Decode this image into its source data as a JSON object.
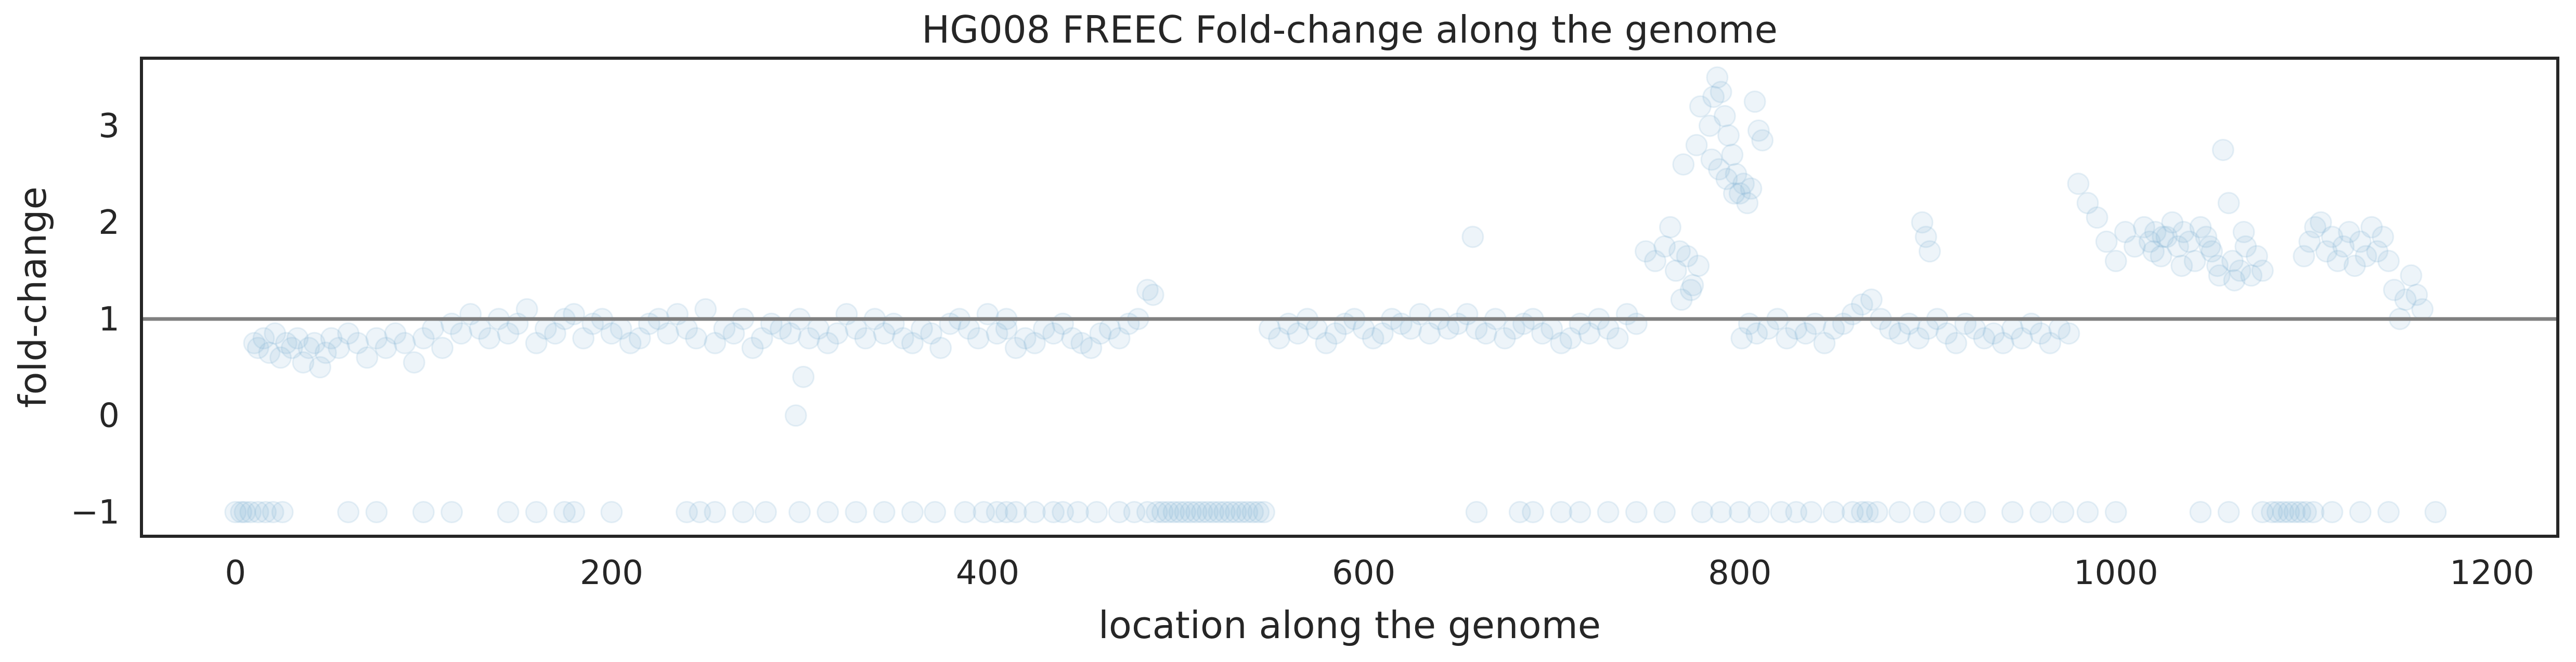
{
  "chart_data": {
    "type": "scatter",
    "title": "HG008 FREEC Fold-change along the genome",
    "xlabel": "location along the genome",
    "ylabel": "fold-change",
    "xlim": [
      -50,
      1235
    ],
    "ylim": [
      -1.25,
      3.7
    ],
    "xticks": [
      0,
      200,
      400,
      600,
      800,
      1000,
      1200
    ],
    "yticks": [
      -1,
      0,
      1,
      2,
      3
    ],
    "xtick_labels": [
      "0",
      "200",
      "400",
      "600",
      "800",
      "1000",
      "1200"
    ],
    "ytick_labels": [
      "−1",
      "0",
      "1",
      "2",
      "3"
    ],
    "grid": false,
    "reference_line": {
      "y": 1,
      "color": "#808080"
    },
    "marker_color": "#7fb2d5",
    "marker_alpha": 0.14,
    "points_x": [
      0,
      3,
      5,
      8,
      12,
      16,
      20,
      25,
      60,
      75,
      100,
      115,
      145,
      160,
      175,
      180,
      200,
      240,
      247,
      255,
      270,
      282,
      300,
      315,
      330,
      345,
      360,
      372,
      388,
      398,
      405,
      410,
      415,
      425,
      435,
      440,
      448,
      458,
      470,
      478,
      485,
      490,
      493,
      496,
      499,
      502,
      505,
      508,
      511,
      514,
      517,
      520,
      523,
      526,
      529,
      532,
      535,
      538,
      541,
      544,
      547,
      660,
      683,
      690,
      705,
      715,
      730,
      745,
      760,
      780,
      790,
      800,
      810,
      822,
      830,
      838,
      850,
      860,
      865,
      868,
      873,
      885,
      898,
      912,
      925,
      945,
      960,
      972,
      985,
      1000,
      1045,
      1060,
      1078,
      1083,
      1086,
      1089,
      1092,
      1095,
      1098,
      1101,
      1105,
      1115,
      1130,
      1145,
      1170,
      10,
      12,
      15,
      18,
      21,
      24,
      27,
      30,
      33,
      36,
      39,
      42,
      45,
      48,
      51,
      55,
      60,
      65,
      70,
      75,
      80,
      85,
      90,
      95,
      100,
      105,
      110,
      115,
      120,
      125,
      130,
      135,
      140,
      145,
      150,
      155,
      160,
      165,
      170,
      175,
      180,
      185,
      190,
      195,
      200,
      205,
      210,
      215,
      220,
      225,
      230,
      235,
      240,
      245,
      250,
      255,
      260,
      265,
      270,
      275,
      280,
      285,
      290,
      295,
      300,
      305,
      310,
      315,
      320,
      325,
      330,
      335,
      340,
      345,
      350,
      355,
      360,
      365,
      370,
      375,
      380,
      385,
      390,
      395,
      400,
      405,
      410,
      415,
      420,
      425,
      430,
      435,
      440,
      445,
      450,
      455,
      460,
      465,
      470,
      475,
      480,
      485,
      488,
      302,
      298,
      410,
      550,
      555,
      560,
      565,
      570,
      575,
      580,
      585,
      590,
      595,
      600,
      605,
      610,
      615,
      620,
      625,
      630,
      635,
      640,
      645,
      650,
      655,
      660,
      665,
      670,
      675,
      680,
      685,
      690,
      695,
      700,
      705,
      710,
      715,
      720,
      725,
      730,
      735,
      740,
      745,
      750,
      755,
      760,
      658,
      763,
      766,
      769,
      772,
      775,
      778,
      768,
      774,
      770,
      777,
      779,
      784,
      786,
      788,
      790,
      792,
      794,
      796,
      798,
      800,
      802,
      804,
      806,
      808,
      810,
      812,
      785,
      789,
      793,
      797,
      801,
      805,
      809,
      815,
      820,
      825,
      830,
      835,
      840,
      845,
      850,
      855,
      860,
      865,
      870,
      875,
      880,
      885,
      890,
      895,
      900,
      905,
      910,
      915,
      920,
      925,
      930,
      935,
      940,
      945,
      950,
      955,
      960,
      965,
      970,
      975,
      980,
      985,
      990,
      995,
      1000,
      1005,
      1010,
      897,
      899,
      901,
      1015,
      1018,
      1021,
      1024,
      1027,
      1030,
      1033,
      1036,
      1039,
      1042,
      1045,
      1048,
      1051,
      1054,
      1057,
      1060,
      1063,
      1066,
      1069,
      1072,
      1075,
      1078,
      1062,
      1055,
      1020,
      1025,
      1035,
      1050,
      1068,
      1100,
      1103,
      1106,
      1109,
      1112,
      1115,
      1118,
      1121,
      1124,
      1127,
      1130,
      1133,
      1136,
      1139,
      1142,
      1145,
      1148,
      1151,
      1154,
      1157,
      1160,
      1163,
      1166,
      1169,
      1172,
      1110,
      1125,
      1140,
      1165,
      1168
    ],
    "points_y": [
      -1,
      -1,
      -1,
      -1,
      -1,
      -1,
      -1,
      -1,
      -1,
      -1,
      -1,
      -1,
      -1,
      -1,
      -1,
      -1,
      -1,
      -1,
      -1,
      -1,
      -1,
      -1,
      -1,
      -1,
      -1,
      -1,
      -1,
      -1,
      -1,
      -1,
      -1,
      -1,
      -1,
      -1,
      -1,
      -1,
      -1,
      -1,
      -1,
      -1,
      -1,
      -1,
      -1,
      -1,
      -1,
      -1,
      -1,
      -1,
      -1,
      -1,
      -1,
      -1,
      -1,
      -1,
      -1,
      -1,
      -1,
      -1,
      -1,
      -1,
      -1,
      -1,
      -1,
      -1,
      -1,
      -1,
      -1,
      -1,
      -1,
      -1,
      -1,
      -1,
      -1,
      -1,
      -1,
      -1,
      -1,
      -1,
      -1,
      -1,
      -1,
      -1,
      -1,
      -1,
      -1,
      -1,
      -1,
      -1,
      -1,
      -1,
      -1,
      -1,
      -1,
      -1,
      -1,
      -1,
      -1,
      -1,
      -1,
      -1,
      -1,
      -1,
      -1,
      -1,
      -1,
      0.75,
      0.7,
      0.8,
      0.65,
      0.85,
      0.6,
      0.75,
      0.7,
      0.8,
      0.55,
      0.7,
      0.75,
      0.5,
      0.65,
      0.8,
      0.7,
      0.85,
      0.75,
      0.6,
      0.8,
      0.7,
      0.85,
      0.75,
      0.55,
      0.8,
      0.9,
      0.7,
      0.95,
      0.85,
      1.05,
      0.9,
      0.8,
      1.0,
      0.85,
      0.95,
      1.1,
      0.75,
      0.9,
      0.85,
      1.0,
      1.05,
      0.8,
      0.95,
      1.0,
      0.85,
      0.9,
      0.75,
      0.8,
      0.95,
      1.0,
      0.85,
      1.05,
      0.9,
      0.8,
      1.1,
      0.75,
      0.9,
      0.85,
      1.0,
      0.7,
      0.8,
      0.95,
      0.9,
      0.85,
      1.0,
      0.8,
      0.9,
      0.75,
      0.85,
      1.05,
      0.9,
      0.8,
      1.0,
      0.85,
      0.95,
      0.8,
      0.75,
      0.9,
      0.85,
      0.7,
      0.95,
      1.0,
      0.9,
      0.8,
      1.05,
      0.85,
      0.9,
      0.7,
      0.8,
      0.75,
      0.9,
      0.85,
      0.95,
      0.8,
      0.75,
      0.7,
      0.85,
      0.9,
      0.8,
      0.95,
      1.0,
      1.3,
      1.25,
      0.4,
      0.0,
      1.0,
      0.9,
      0.8,
      0.95,
      0.85,
      1.0,
      0.9,
      0.75,
      0.85,
      0.95,
      1.0,
      0.9,
      0.8,
      0.85,
      1.0,
      0.95,
      0.9,
      1.05,
      0.85,
      1.0,
      0.9,
      0.95,
      1.05,
      0.9,
      0.85,
      1.0,
      0.8,
      0.9,
      0.95,
      1.0,
      0.85,
      0.9,
      0.75,
      0.8,
      0.95,
      0.85,
      1.0,
      0.9,
      0.8,
      1.05,
      0.95,
      1.7,
      1.6,
      1.75,
      1.85,
      1.95,
      1.5,
      1.2,
      1.65,
      1.35,
      1.55,
      1.7,
      1.3,
      2.6,
      2.8,
      3.2,
      3.0,
      3.3,
      3.5,
      3.35,
      3.1,
      2.9,
      2.7,
      2.5,
      2.3,
      2.4,
      2.2,
      2.35,
      3.25,
      2.95,
      2.85,
      2.65,
      2.55,
      2.45,
      2.3,
      0.8,
      0.95,
      0.85,
      0.9,
      1.0,
      0.8,
      0.9,
      0.85,
      0.95,
      0.75,
      0.9,
      0.95,
      1.05,
      1.15,
      1.2,
      1.0,
      0.9,
      0.85,
      0.95,
      0.8,
      0.9,
      1.0,
      0.85,
      0.75,
      0.95,
      0.9,
      0.8,
      0.85,
      0.75,
      0.9,
      0.8,
      0.95,
      0.85,
      0.75,
      0.9,
      0.85,
      2.4,
      2.2,
      2.05,
      1.8,
      1.6,
      1.9,
      1.75,
      2.0,
      1.85,
      1.7,
      1.95,
      1.8,
      1.9,
      1.65,
      1.85,
      2.0,
      1.75,
      1.9,
      1.8,
      1.6,
      1.95,
      1.85,
      1.7,
      1.55,
      2.75,
      2.2,
      1.4,
      1.5,
      1.75,
      1.45,
      1.65,
      1.5,
      1.6,
      1.45,
      1.7,
      1.85,
      1.55,
      1.75,
      1.9,
      1.65,
      1.8,
      1.95,
      2.0,
      1.7,
      1.85,
      1.6,
      1.75,
      1.9,
      1.55,
      1.8,
      1.65,
      1.95,
      1.7,
      1.85,
      1.6,
      1.3,
      1.0,
      1.2,
      1.45,
      1.25,
      1.1
    ]
  }
}
